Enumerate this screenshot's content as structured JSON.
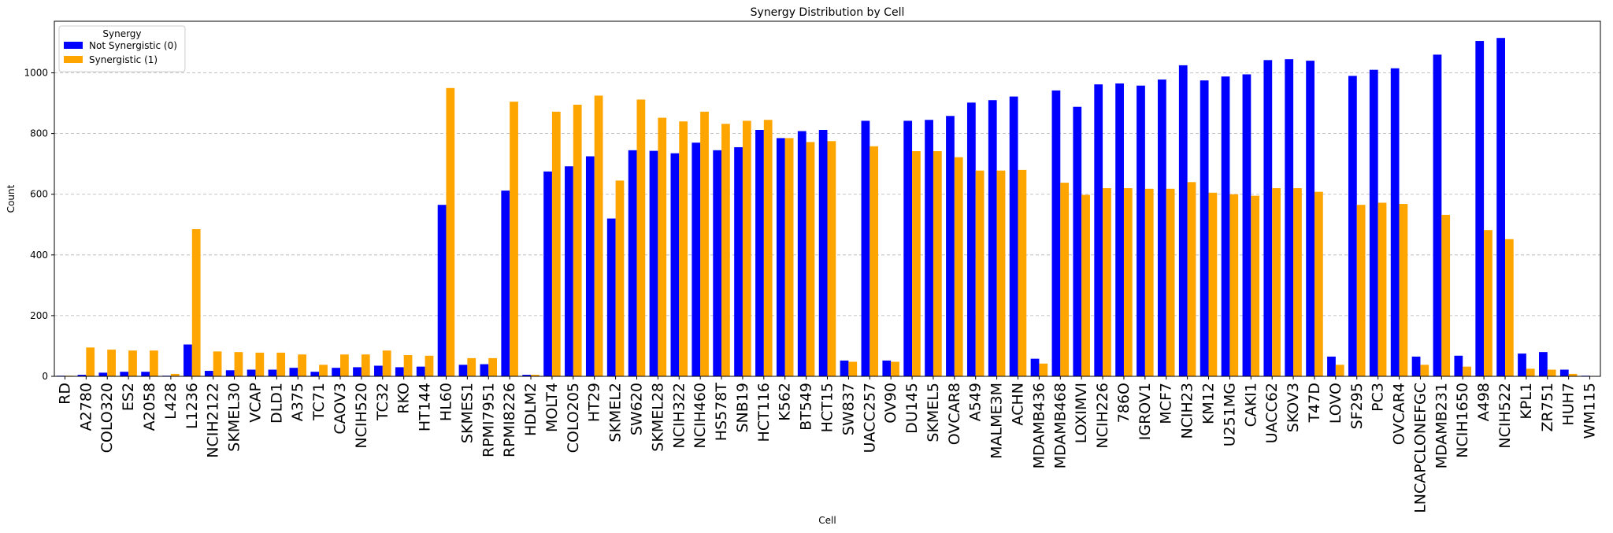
{
  "chart_data": {
    "type": "bar",
    "title": "Synergy Distribution by Cell",
    "xlabel": "Cell",
    "ylabel": "Count",
    "ylim": [
      0,
      1170
    ],
    "yticks": [
      0,
      200,
      400,
      600,
      800,
      1000
    ],
    "grid": "y-dashed",
    "legend": {
      "title": "Synergy",
      "position": "top-left"
    },
    "categories": [
      "RD",
      "A2780",
      "COLO320",
      "ES2",
      "A2058",
      "L428",
      "L1236",
      "NCIH2122",
      "SKMEL30",
      "VCAP",
      "DLD1",
      "A375",
      "TC71",
      "CAOV3",
      "NCIH520",
      "TC32",
      "RKO",
      "HT144",
      "HL60",
      "SKMES1",
      "RPMI7951",
      "RPMI8226",
      "HDLM2",
      "MOLT4",
      "COLO205",
      "HT29",
      "SKMEL2",
      "SW620",
      "SKMEL28",
      "NCIH322",
      "NCIH460",
      "HS578T",
      "SNB19",
      "HCT116",
      "K562",
      "BT549",
      "HCT15",
      "SW837",
      "UACC257",
      "OV90",
      "DU145",
      "SKMEL5",
      "OVCAR8",
      "A549",
      "MALME3M",
      "ACHN",
      "MDAMB436",
      "MDAMB468",
      "LOXIMVI",
      "NCIH226",
      "786O",
      "IGROV1",
      "MCF7",
      "NCIH23",
      "KM12",
      "U251MG",
      "CAKI1",
      "UACC62",
      "SKOV3",
      "T47D",
      "LOVO",
      "SF295",
      "PC3",
      "OVCAR4",
      "LNCAPCLONEFGC",
      "MDAMB231",
      "NCIH1650",
      "A498",
      "NCIH522",
      "KPL1",
      "ZR751",
      "HUH7",
      "WM115"
    ],
    "series": [
      {
        "name": "Not Synergistic (0)",
        "color": "#0000ff",
        "values": [
          2,
          5,
          12,
          15,
          15,
          2,
          105,
          18,
          20,
          22,
          22,
          28,
          15,
          28,
          30,
          35,
          30,
          32,
          565,
          38,
          40,
          612,
          5,
          675,
          692,
          725,
          520,
          745,
          743,
          735,
          770,
          745,
          755,
          812,
          785,
          808,
          812,
          52,
          842,
          52,
          842,
          845,
          858,
          902,
          910,
          922,
          58,
          942,
          888,
          962,
          965,
          958,
          978,
          1025,
          975,
          988,
          995,
          1042,
          1045,
          1040,
          65,
          990,
          1010,
          1015,
          65,
          1060,
          68,
          1105,
          1115,
          75,
          80,
          22,
          2
        ]
      },
      {
        "name": "Synergistic (1)",
        "color": "#ffa500",
        "values": [
          2,
          95,
          88,
          85,
          85,
          8,
          485,
          82,
          80,
          78,
          78,
          72,
          38,
          72,
          72,
          85,
          70,
          68,
          950,
          60,
          60,
          905,
          5,
          872,
          895,
          925,
          645,
          912,
          852,
          840,
          872,
          832,
          842,
          845,
          785,
          772,
          775,
          48,
          758,
          48,
          742,
          742,
          722,
          678,
          678,
          680,
          42,
          638,
          598,
          620,
          620,
          618,
          618,
          640,
          605,
          600,
          595,
          620,
          620,
          608,
          38,
          565,
          572,
          568,
          38,
          532,
          32,
          482,
          452,
          25,
          22,
          8,
          0
        ]
      }
    ]
  }
}
